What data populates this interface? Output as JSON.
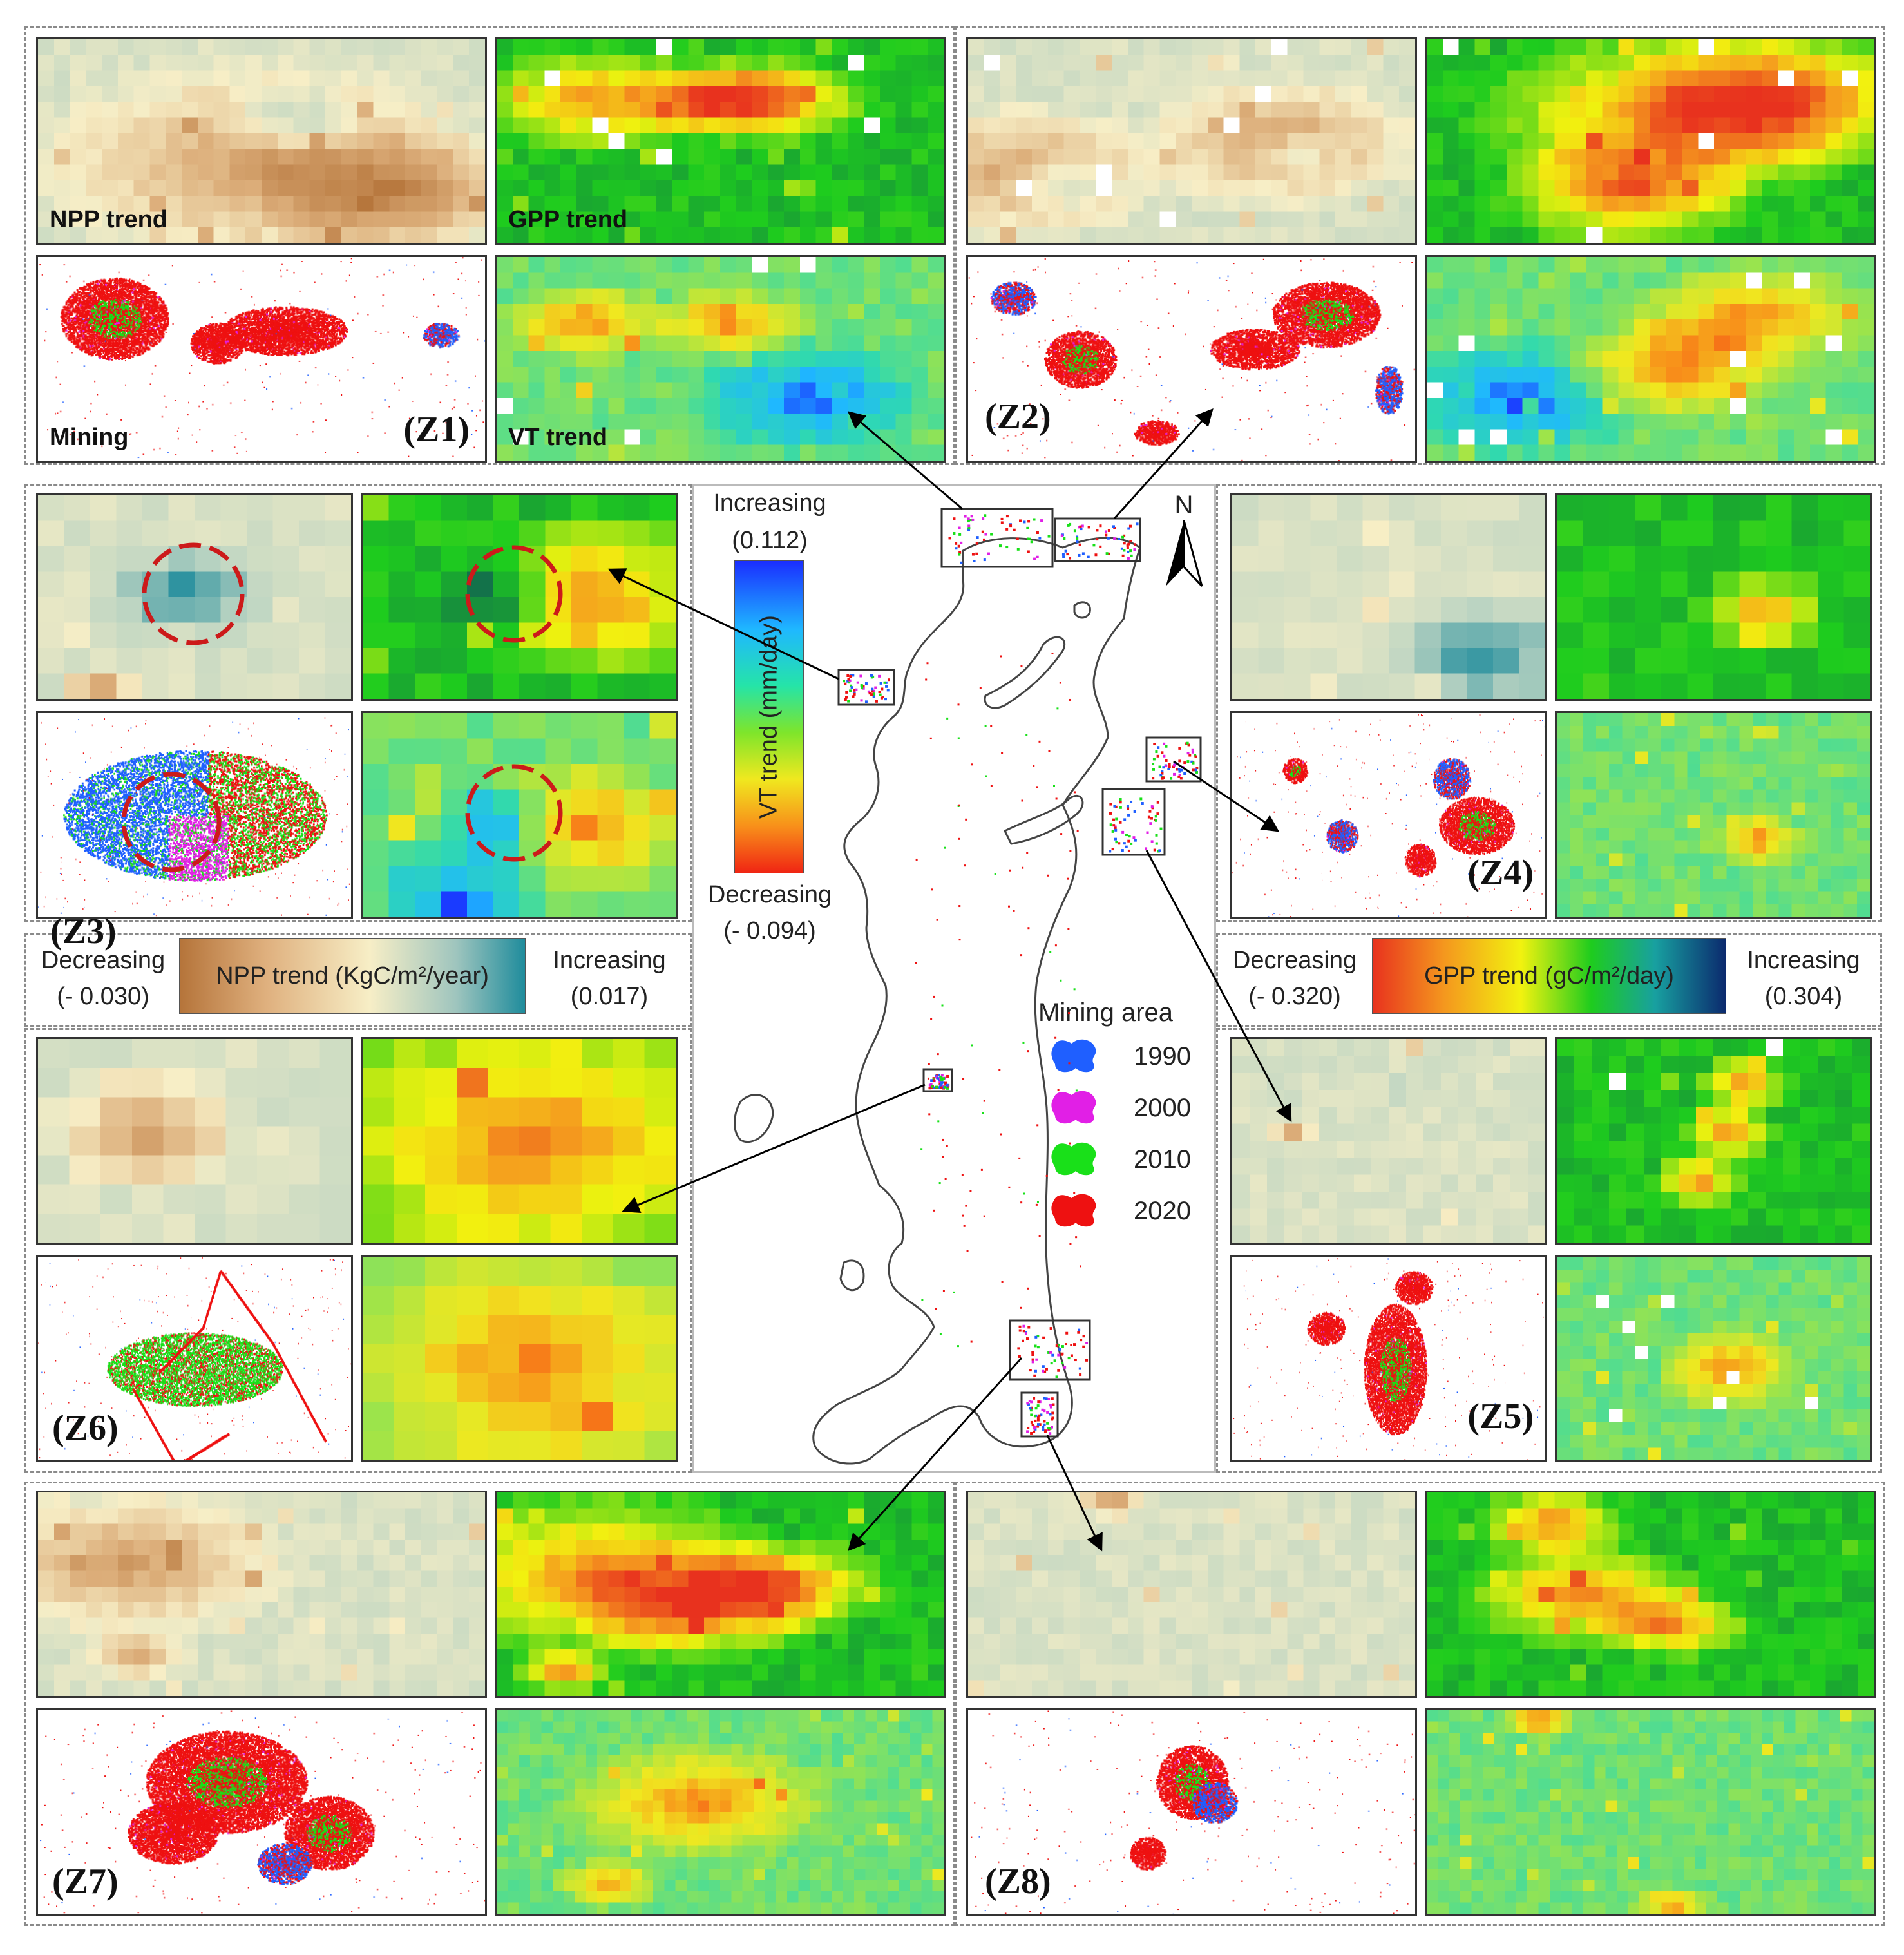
{
  "labels": {
    "npp_trend": "NPP trend",
    "gpp_trend": "GPP trend",
    "mining": "Mining",
    "vt_trend": "VT trend"
  },
  "zones": [
    "(Z1)",
    "(Z2)",
    "(Z3)",
    "(Z4)",
    "(Z5)",
    "(Z6)",
    "(Z7)",
    "(Z8)"
  ],
  "vt_legend": {
    "top_label": "Increasing",
    "top_value": "(0.112)",
    "title": "VT trend (mm/day)",
    "bottom_label": "Decreasing",
    "bottom_value": "(- 0.094)"
  },
  "npp_legend": {
    "left_label": "Decreasing",
    "left_value": "(- 0.030)",
    "title": "NPP trend (KgC/m²/year)",
    "right_label": "Increasing",
    "right_value": "(0.017)"
  },
  "gpp_legend": {
    "left_label": "Decreasing",
    "left_value": "(- 0.320)",
    "title": "GPP trend (gC/m²/day)",
    "right_label": "Increasing",
    "right_value": "(0.304)"
  },
  "mining_legend": {
    "title": "Mining area",
    "items": [
      {
        "year": "1990",
        "color": "#1f5fff"
      },
      {
        "year": "2000",
        "color": "#e11fe6"
      },
      {
        "year": "2010",
        "color": "#19e019"
      },
      {
        "year": "2020",
        "color": "#ee1111"
      }
    ]
  },
  "north": "N",
  "colors": {
    "npp_low": "#b5743a",
    "npp_mid": "#f7eec6",
    "npp_high": "#1f8c9c",
    "gpp_low": "#e8321e",
    "gpp_mid": "#f2f20f",
    "gpp_green": "#1ecc1e",
    "gpp_high": "#0b2a6e"
  }
}
